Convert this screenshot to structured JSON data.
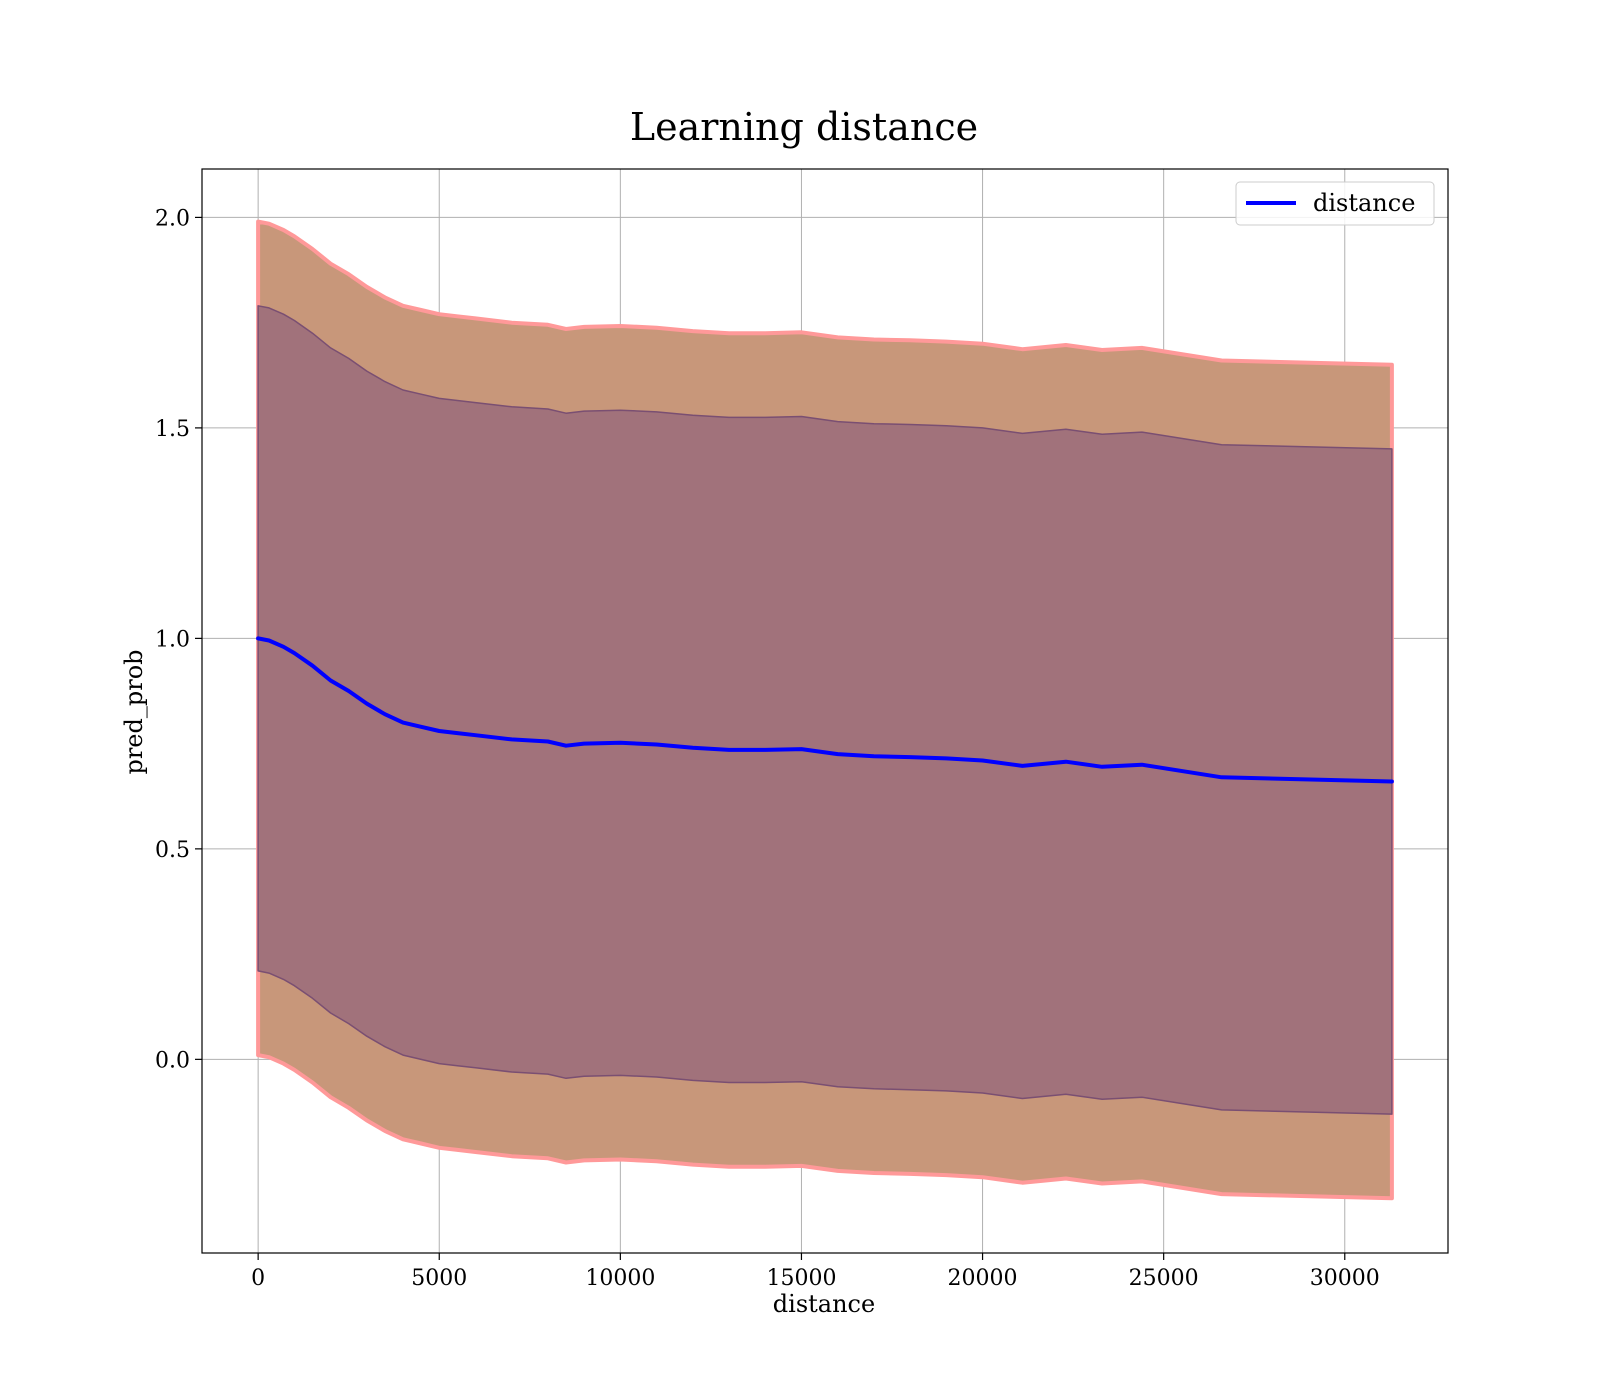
{
  "chart_data": {
    "type": "line",
    "title": "Learning distance",
    "xlabel": "distance",
    "ylabel": "pred_prob",
    "xlim": [
      -1550,
      32850
    ],
    "ylim": [
      -0.46,
      2.115
    ],
    "x_ticks": [
      0,
      5000,
      10000,
      15000,
      20000,
      25000,
      30000
    ],
    "x_tick_labels": [
      "0",
      "5000",
      "10000",
      "15000",
      "20000",
      "25000",
      "30000"
    ],
    "y_ticks": [
      0.0,
      0.5,
      1.0,
      1.5,
      2.0
    ],
    "y_tick_labels": [
      "0.0",
      "0.5",
      "1.0",
      "1.5",
      "2.0"
    ],
    "grid": true,
    "legend": {
      "position": "top-right",
      "entries": [
        "distance"
      ]
    },
    "colors": {
      "mean_line": "#0000ff",
      "outer_band_fill": "#c8977a",
      "outer_band_edge": "#ff9999",
      "inner_band_fill": "#a1727b",
      "inner_band_edge": "#7a4f72"
    },
    "series": [
      {
        "name": "distance",
        "x": [
          0,
          300,
          700,
          1000,
          1500,
          2000,
          2500,
          3000,
          3500,
          4000,
          4500,
          5000,
          5500,
          6000,
          7000,
          8000,
          8500,
          9000,
          10000,
          11000,
          12000,
          13000,
          14000,
          15000,
          16000,
          17000,
          18000,
          19000,
          20000,
          21100,
          22300,
          23300,
          24400,
          26600,
          31300
        ],
        "y": [
          1.0,
          0.995,
          0.98,
          0.965,
          0.935,
          0.9,
          0.875,
          0.845,
          0.82,
          0.8,
          0.79,
          0.78,
          0.775,
          0.77,
          0.76,
          0.755,
          0.745,
          0.75,
          0.752,
          0.748,
          0.74,
          0.735,
          0.735,
          0.737,
          0.725,
          0.72,
          0.718,
          0.715,
          0.71,
          0.697,
          0.707,
          0.695,
          0.7,
          0.67,
          0.66
        ]
      }
    ],
    "bands": [
      {
        "kind": "outer",
        "x": [
          0,
          300,
          700,
          1000,
          1500,
          2000,
          2500,
          3000,
          3500,
          4000,
          4500,
          5000,
          5500,
          6000,
          7000,
          8000,
          8500,
          9000,
          10000,
          11000,
          12000,
          13000,
          14000,
          15000,
          16000,
          17000,
          18000,
          19000,
          20000,
          21100,
          22300,
          23300,
          24400,
          26600,
          31300
        ],
        "upper": [
          1.99,
          1.985,
          1.97,
          1.955,
          1.925,
          1.89,
          1.865,
          1.835,
          1.81,
          1.79,
          1.78,
          1.77,
          1.765,
          1.76,
          1.75,
          1.745,
          1.735,
          1.74,
          1.742,
          1.738,
          1.73,
          1.725,
          1.725,
          1.727,
          1.715,
          1.71,
          1.708,
          1.705,
          1.7,
          1.687,
          1.697,
          1.685,
          1.69,
          1.66,
          1.65
        ],
        "lower": [
          0.01,
          0.005,
          -0.01,
          -0.025,
          -0.055,
          -0.09,
          -0.115,
          -0.145,
          -0.17,
          -0.19,
          -0.2,
          -0.21,
          -0.215,
          -0.22,
          -0.23,
          -0.235,
          -0.245,
          -0.24,
          -0.238,
          -0.242,
          -0.25,
          -0.255,
          -0.255,
          -0.253,
          -0.265,
          -0.27,
          -0.272,
          -0.275,
          -0.28,
          -0.293,
          -0.283,
          -0.295,
          -0.29,
          -0.32,
          -0.33
        ]
      },
      {
        "kind": "inner",
        "x": [
          0,
          300,
          700,
          1000,
          1500,
          2000,
          2500,
          3000,
          3500,
          4000,
          4500,
          5000,
          5500,
          6000,
          7000,
          8000,
          8500,
          9000,
          10000,
          11000,
          12000,
          13000,
          14000,
          15000,
          16000,
          17000,
          18000,
          19000,
          20000,
          21100,
          22300,
          23300,
          24400,
          26600,
          31300
        ],
        "upper": [
          1.79,
          1.785,
          1.77,
          1.755,
          1.725,
          1.69,
          1.665,
          1.635,
          1.61,
          1.59,
          1.58,
          1.57,
          1.565,
          1.56,
          1.55,
          1.545,
          1.535,
          1.54,
          1.542,
          1.538,
          1.53,
          1.525,
          1.525,
          1.527,
          1.515,
          1.51,
          1.508,
          1.505,
          1.5,
          1.487,
          1.497,
          1.485,
          1.49,
          1.46,
          1.45
        ],
        "lower": [
          0.21,
          0.205,
          0.19,
          0.175,
          0.145,
          0.11,
          0.085,
          0.055,
          0.03,
          0.01,
          0.0,
          -0.01,
          -0.015,
          -0.02,
          -0.03,
          -0.035,
          -0.045,
          -0.04,
          -0.038,
          -0.042,
          -0.05,
          -0.055,
          -0.055,
          -0.053,
          -0.065,
          -0.07,
          -0.072,
          -0.075,
          -0.08,
          -0.093,
          -0.083,
          -0.095,
          -0.09,
          -0.12,
          -0.13
        ]
      }
    ]
  }
}
